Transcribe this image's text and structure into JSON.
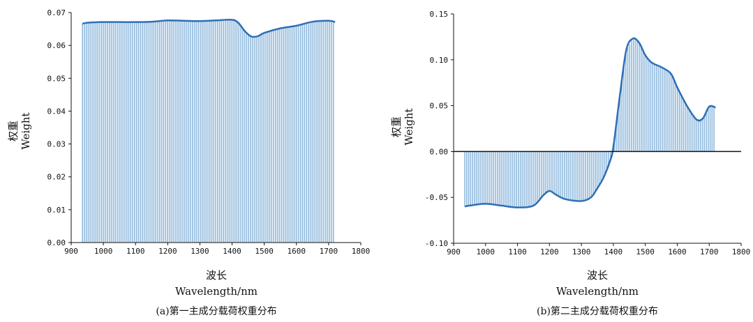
{
  "chart_data": [
    {
      "type": "bar",
      "panel": "a",
      "caption": "(a)第一主成分载荷权重分布",
      "xlabel_cn": "波长",
      "xlabel_en": "Wavelength/nm",
      "ylabel_cn": "权重",
      "ylabel_en": "Weight",
      "xlim": [
        900,
        1800
      ],
      "ylim": [
        0,
        0.07
      ],
      "xticks": [
        900,
        1000,
        1100,
        1200,
        1300,
        1400,
        1500,
        1600,
        1700,
        1800
      ],
      "yticks": [
        0.0,
        0.01,
        0.02,
        0.03,
        0.04,
        0.05,
        0.06,
        0.07
      ],
      "ytick_labels": [
        "0.00",
        "0.01",
        "0.02",
        "0.03",
        "0.04",
        "0.05",
        "0.06",
        "0.07"
      ],
      "bar_color": "#8fb8dc",
      "line_color": "#2e6fb5",
      "x": [
        935,
        950,
        1000,
        1050,
        1100,
        1150,
        1200,
        1250,
        1300,
        1350,
        1400,
        1420,
        1440,
        1460,
        1480,
        1500,
        1550,
        1600,
        1650,
        1700,
        1720
      ],
      "y": [
        0.0666,
        0.0669,
        0.0671,
        0.0671,
        0.0671,
        0.0672,
        0.0676,
        0.0675,
        0.0674,
        0.0676,
        0.0678,
        0.0668,
        0.0643,
        0.0627,
        0.0628,
        0.0638,
        0.0652,
        0.066,
        0.0672,
        0.0675,
        0.0671
      ]
    },
    {
      "type": "bar",
      "panel": "b",
      "caption": "(b)第二主成分载荷权重分布",
      "xlabel_cn": "波长",
      "xlabel_en": "Wavelength/nm",
      "ylabel_cn": "权重",
      "ylabel_en": "Weight",
      "xlim": [
        900,
        1800
      ],
      "ylim": [
        -0.1,
        0.15
      ],
      "xticks": [
        900,
        1000,
        1100,
        1200,
        1300,
        1400,
        1500,
        1600,
        1700,
        1800
      ],
      "yticks": [
        -0.1,
        -0.05,
        0.0,
        0.05,
        0.1,
        0.15
      ],
      "ytick_labels": [
        "-0.10",
        "-0.05",
        "0.00",
        "0.05",
        "0.10",
        "0.15"
      ],
      "bar_color": "#8fb8dc",
      "line_color": "#2e6fb5",
      "x": [
        935,
        950,
        1000,
        1050,
        1100,
        1150,
        1180,
        1200,
        1220,
        1250,
        1300,
        1330,
        1350,
        1370,
        1390,
        1400,
        1420,
        1440,
        1460,
        1480,
        1500,
        1520,
        1550,
        1580,
        1600,
        1630,
        1660,
        1680,
        1700,
        1720
      ],
      "y": [
        -0.06,
        -0.059,
        -0.057,
        -0.059,
        -0.061,
        -0.059,
        -0.048,
        -0.043,
        -0.047,
        -0.052,
        -0.054,
        -0.05,
        -0.04,
        -0.028,
        -0.01,
        0.005,
        0.06,
        0.11,
        0.123,
        0.119,
        0.105,
        0.097,
        0.092,
        0.085,
        0.07,
        0.05,
        0.035,
        0.036,
        0.049,
        0.048
      ]
    }
  ]
}
